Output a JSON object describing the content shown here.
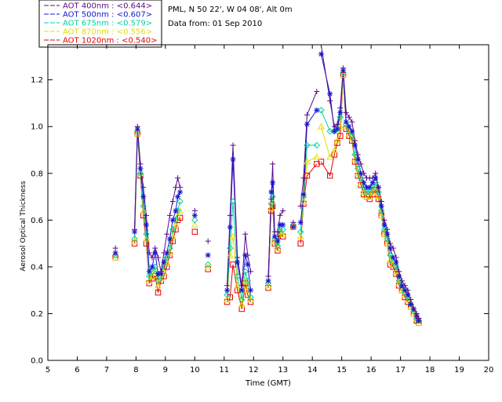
{
  "info": {
    "station": "PML, N 50 22', W 04 08', Alt 0m",
    "date": "Data from: 01 Sep 2010"
  },
  "chart_data": {
    "type": "scatter",
    "title": "",
    "xlabel": "Time (GMT)",
    "ylabel": "Aerosol Optical Thickness",
    "xlim": [
      5,
      20
    ],
    "ylim": [
      0,
      1.35
    ],
    "x_ticks": [
      5,
      6,
      7,
      8,
      9,
      10,
      11,
      12,
      13,
      14,
      15,
      16,
      17,
      18,
      19,
      20
    ],
    "y_ticks": [
      0.0,
      0.2,
      0.4,
      0.6,
      0.8,
      1.0,
      1.2
    ],
    "y_tick_labels": [
      "0.0",
      "0.2",
      "0.4",
      "0.6",
      "0.8",
      "1.0",
      "1.2"
    ],
    "legend_position": "top-left, outside plot",
    "legend": [
      {
        "label": "AOT  400nm : <0.644>",
        "color": "#5a0a8a",
        "marker": "plus"
      },
      {
        "label": "AOT  500nm : <0.607>",
        "color": "#1414d2",
        "marker": "asterisk"
      },
      {
        "label": "AOT  675nm : <0.579>",
        "color": "#00d2a0",
        "marker": "diamond"
      },
      {
        "label": "AOT  870nm : <0.556>",
        "color": "#e6dc00",
        "marker": "triangle"
      },
      {
        "label": "AOT 1020nm : <0.540>",
        "color": "#e60000",
        "marker": "square"
      }
    ],
    "x": [
      7.3,
      7.95,
      8.05,
      8.15,
      8.25,
      8.35,
      8.45,
      8.55,
      8.65,
      8.75,
      8.85,
      8.95,
      9.05,
      9.15,
      9.25,
      9.35,
      9.42,
      9.5,
      10.0,
      10.45,
      11.1,
      11.2,
      11.3,
      11.45,
      11.6,
      11.72,
      11.8,
      11.9,
      12.5,
      12.6,
      12.65,
      12.72,
      12.82,
      12.9,
      13.0,
      13.35,
      13.6,
      13.7,
      13.82,
      14.15,
      14.3,
      14.6,
      14.75,
      14.85,
      14.95,
      15.05,
      15.15,
      15.25,
      15.35,
      15.45,
      15.55,
      15.65,
      15.75,
      15.85,
      15.95,
      16.05,
      16.15,
      16.25,
      16.35,
      16.45,
      16.55,
      16.65,
      16.75,
      16.85,
      16.95,
      17.05,
      17.15,
      17.25,
      17.35,
      17.45,
      17.55,
      17.62
    ],
    "series": [
      {
        "name": "AOT 400nm",
        "values": [
          0.48,
          0.56,
          1.0,
          0.84,
          0.74,
          0.62,
          0.46,
          0.44,
          0.48,
          0.44,
          0.38,
          0.46,
          0.54,
          0.62,
          0.68,
          0.74,
          0.78,
          0.74,
          0.64,
          0.51,
          0.32,
          0.62,
          0.92,
          0.44,
          0.32,
          0.54,
          0.45,
          0.38,
          0.36,
          0.69,
          0.84,
          0.55,
          0.55,
          0.62,
          0.64,
          0.59,
          0.66,
          0.78,
          1.05,
          1.15,
          1.35,
          1.11,
          1.0,
          1.01,
          1.08,
          1.25,
          1.06,
          1.04,
          1.02,
          0.94,
          0.88,
          0.84,
          0.8,
          0.78,
          0.78,
          0.78,
          0.8,
          0.74,
          0.68,
          0.6,
          0.56,
          0.5,
          0.48,
          0.44,
          0.38,
          0.34,
          0.32,
          0.3,
          0.26,
          0.22,
          0.2,
          0.18
        ]
      },
      {
        "name": "AOT 500nm",
        "values": [
          0.46,
          0.55,
          0.99,
          0.82,
          0.7,
          0.58,
          0.38,
          0.4,
          0.46,
          0.37,
          0.37,
          0.42,
          0.46,
          0.52,
          0.6,
          0.64,
          0.7,
          0.72,
          0.62,
          0.45,
          0.3,
          0.57,
          0.86,
          0.42,
          0.3,
          0.45,
          0.41,
          0.3,
          0.34,
          0.72,
          0.76,
          0.53,
          0.51,
          0.58,
          0.58,
          0.57,
          0.59,
          0.71,
          1.01,
          1.07,
          1.31,
          1.14,
          0.98,
          0.99,
          1.06,
          1.24,
          1.02,
          1.0,
          0.98,
          0.92,
          0.86,
          0.8,
          0.76,
          0.74,
          0.74,
          0.76,
          0.78,
          0.74,
          0.66,
          0.58,
          0.54,
          0.48,
          0.44,
          0.42,
          0.36,
          0.32,
          0.3,
          0.28,
          0.24,
          0.22,
          0.19,
          0.17
        ]
      },
      {
        "name": "AOT 675nm",
        "values": [
          0.45,
          0.52,
          0.98,
          0.8,
          0.66,
          0.54,
          0.36,
          0.38,
          0.4,
          0.34,
          0.36,
          0.4,
          0.44,
          0.48,
          0.56,
          0.6,
          0.64,
          0.68,
          0.6,
          0.41,
          0.28,
          0.48,
          0.68,
          0.36,
          0.26,
          0.38,
          0.34,
          0.27,
          0.33,
          0.67,
          0.7,
          0.52,
          0.49,
          0.56,
          0.56,
          0.58,
          0.55,
          0.7,
          0.92,
          0.92,
          1.07,
          0.98,
          0.98,
          0.99,
          1.04,
          1.23,
          1.01,
          0.98,
          0.96,
          0.88,
          0.82,
          0.78,
          0.74,
          0.72,
          0.72,
          0.74,
          0.76,
          0.72,
          0.64,
          0.56,
          0.52,
          0.45,
          0.42,
          0.4,
          0.34,
          0.31,
          0.29,
          0.27,
          0.24,
          0.21,
          0.18,
          0.17
        ]
      },
      {
        "name": "AOT 870nm",
        "values": [
          0.44,
          0.51,
          0.97,
          0.8,
          0.64,
          0.52,
          0.34,
          0.36,
          0.38,
          0.32,
          0.35,
          0.38,
          0.42,
          0.46,
          0.53,
          0.58,
          0.62,
          0.64,
          0.58,
          0.4,
          0.26,
          0.45,
          0.53,
          0.32,
          0.24,
          0.34,
          0.3,
          0.26,
          0.32,
          0.65,
          0.68,
          0.51,
          0.48,
          0.55,
          0.54,
          0.57,
          0.53,
          0.68,
          0.85,
          0.87,
          1.0,
          0.87,
          0.9,
          0.94,
          1.0,
          1.22,
          1.0,
          0.97,
          0.95,
          0.86,
          0.8,
          0.76,
          0.72,
          0.7,
          0.7,
          0.72,
          0.74,
          0.7,
          0.62,
          0.54,
          0.5,
          0.43,
          0.41,
          0.38,
          0.33,
          0.3,
          0.28,
          0.26,
          0.23,
          0.2,
          0.18,
          0.16
        ]
      },
      {
        "name": "AOT 1020nm",
        "values": [
          0.44,
          0.5,
          0.97,
          0.79,
          0.62,
          0.5,
          0.33,
          0.35,
          0.36,
          0.29,
          0.34,
          0.36,
          0.4,
          0.45,
          0.51,
          0.56,
          0.6,
          0.61,
          0.55,
          0.39,
          0.25,
          0.27,
          0.41,
          0.3,
          0.22,
          0.33,
          0.28,
          0.25,
          0.31,
          0.64,
          0.66,
          0.5,
          0.47,
          0.54,
          0.53,
          0.57,
          0.5,
          0.67,
          0.79,
          0.84,
          0.85,
          0.79,
          0.88,
          0.93,
          0.96,
          1.22,
          0.99,
          0.96,
          0.94,
          0.85,
          0.79,
          0.75,
          0.71,
          0.7,
          0.69,
          0.71,
          0.73,
          0.69,
          0.62,
          0.54,
          0.5,
          0.41,
          0.4,
          0.37,
          0.32,
          0.3,
          0.27,
          0.25,
          0.23,
          0.2,
          0.17,
          0.16
        ]
      }
    ],
    "gaps_after_x": [
      7.3,
      9.5,
      10.0,
      10.45,
      11.9,
      13.0,
      13.35,
      14.15
    ]
  }
}
